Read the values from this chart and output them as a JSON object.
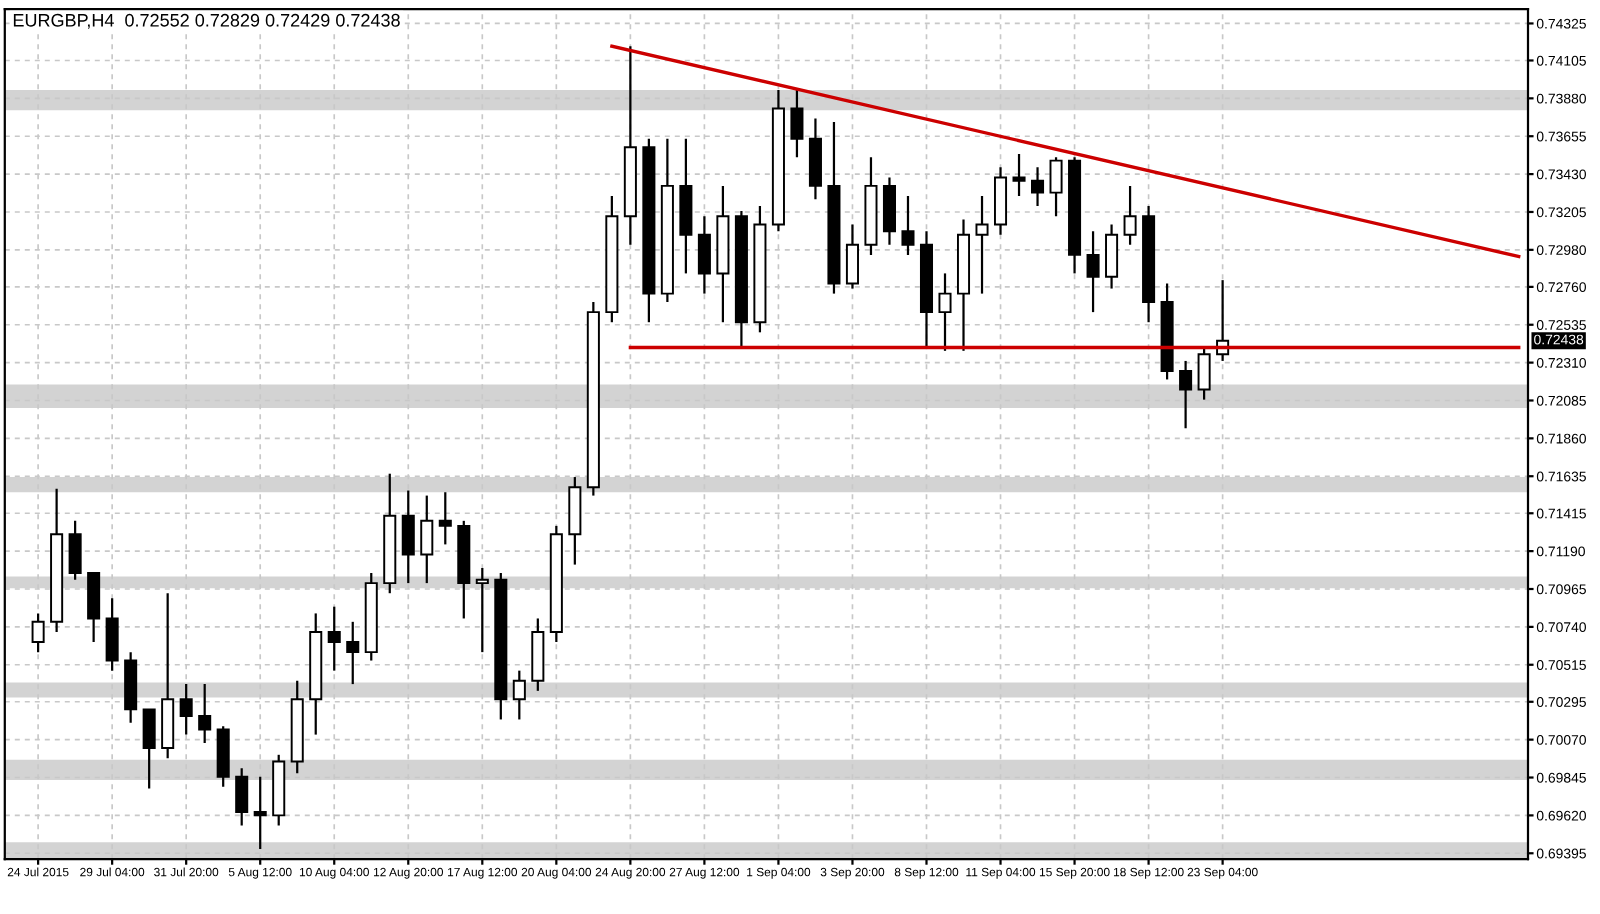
{
  "chart_data": {
    "type": "candlestick",
    "title": "EURGBP,H4  0.72552 0.72829 0.72429 0.72438",
    "categories": [
      "24 Jul 2015",
      null,
      null,
      null,
      "29 Jul 04:00",
      null,
      null,
      null,
      "31 Jul 20:00",
      null,
      null,
      null,
      "5 Aug 12:00",
      null,
      null,
      null,
      "10 Aug 04:00",
      null,
      null,
      null,
      "12 Aug 20:00",
      null,
      null,
      null,
      "17 Aug 12:00",
      null,
      null,
      null,
      "20 Aug 04:00",
      null,
      null,
      null,
      "24 Aug 20:00",
      null,
      null,
      null,
      "27 Aug 12:00",
      null,
      null,
      null,
      "1 Sep 04:00",
      null,
      null,
      null,
      "3 Sep 20:00",
      null,
      null,
      null,
      "8 Sep 12:00",
      null,
      null,
      null,
      "11 Sep 04:00",
      null,
      null,
      null,
      "15 Sep 20:00",
      null,
      null,
      null,
      "18 Sep 12:00",
      null,
      null,
      null,
      "23 Sep 04:00",
      null,
      null,
      null,
      null,
      null,
      null,
      null,
      null,
      null,
      null,
      null,
      null,
      null,
      null,
      null,
      null
    ],
    "ohlc": [
      [
        0.7065,
        0.7082,
        0.7059,
        0.7077
      ],
      [
        0.7077,
        0.7156,
        0.7071,
        0.7129
      ],
      [
        0.7129,
        0.7137,
        0.7102,
        0.7106
      ],
      [
        0.7106,
        0.7106,
        0.7065,
        0.7079
      ],
      [
        0.7079,
        0.7091,
        0.7048,
        0.7054
      ],
      [
        0.7054,
        0.7059,
        0.7017,
        0.7025
      ],
      [
        0.7025,
        0.7025,
        0.6978,
        0.7002
      ],
      [
        0.7002,
        0.7094,
        0.6996,
        0.7031
      ],
      [
        0.7031,
        0.704,
        0.701,
        0.7021
      ],
      [
        0.7021,
        0.704,
        0.7005,
        0.7013
      ],
      [
        0.7013,
        0.7015,
        0.6979,
        0.6985
      ],
      [
        0.6985,
        0.699,
        0.6956,
        0.6964
      ],
      [
        0.6964,
        0.6985,
        0.6942,
        0.6962
      ],
      [
        0.6962,
        0.6998,
        0.6956,
        0.6994
      ],
      [
        0.6994,
        0.7042,
        0.6987,
        0.7031
      ],
      [
        0.7031,
        0.7082,
        0.701,
        0.7071
      ],
      [
        0.7071,
        0.7086,
        0.7048,
        0.7065
      ],
      [
        0.7065,
        0.7077,
        0.704,
        0.7059
      ],
      [
        0.7059,
        0.7106,
        0.7054,
        0.71
      ],
      [
        0.71,
        0.7165,
        0.7094,
        0.714
      ],
      [
        0.714,
        0.7155,
        0.71,
        0.7117
      ],
      [
        0.7117,
        0.7152,
        0.71,
        0.7137
      ],
      [
        0.7137,
        0.7154,
        0.7123,
        0.7134
      ],
      [
        0.7134,
        0.7137,
        0.7079,
        0.71
      ],
      [
        0.71,
        0.7109,
        0.7059,
        0.7102
      ],
      [
        0.7102,
        0.7106,
        0.7019,
        0.7031
      ],
      [
        0.7031,
        0.7048,
        0.7019,
        0.7042
      ],
      [
        0.7042,
        0.7079,
        0.7036,
        0.7071
      ],
      [
        0.7071,
        0.7134,
        0.7065,
        0.7129
      ],
      [
        0.7129,
        0.7163,
        0.7111,
        0.7157
      ],
      [
        0.7157,
        0.7267,
        0.7152,
        0.7261
      ],
      [
        0.7261,
        0.733,
        0.7255,
        0.7318
      ],
      [
        0.7318,
        0.7419,
        0.7301,
        0.7359
      ],
      [
        0.7359,
        0.7364,
        0.7255,
        0.7272
      ],
      [
        0.7272,
        0.7364,
        0.7267,
        0.7336
      ],
      [
        0.7336,
        0.7364,
        0.7284,
        0.7307
      ],
      [
        0.7307,
        0.7318,
        0.7272,
        0.7284
      ],
      [
        0.7284,
        0.7336,
        0.7255,
        0.7318
      ],
      [
        0.7318,
        0.7321,
        0.724,
        0.7255
      ],
      [
        0.7255,
        0.7324,
        0.7249,
        0.7313
      ],
      [
        0.7313,
        0.7393,
        0.7309,
        0.7382
      ],
      [
        0.7382,
        0.7394,
        0.7353,
        0.7364
      ],
      [
        0.7364,
        0.7376,
        0.7328,
        0.7336
      ],
      [
        0.7336,
        0.7374,
        0.7272,
        0.7278
      ],
      [
        0.7278,
        0.7313,
        0.7275,
        0.7301
      ],
      [
        0.7301,
        0.7353,
        0.7295,
        0.7336
      ],
      [
        0.7336,
        0.7341,
        0.7301,
        0.7309
      ],
      [
        0.7309,
        0.733,
        0.7295,
        0.7301
      ],
      [
        0.7301,
        0.7309,
        0.724,
        0.7261
      ],
      [
        0.7261,
        0.7284,
        0.7238,
        0.7272
      ],
      [
        0.7272,
        0.7316,
        0.7238,
        0.7307
      ],
      [
        0.7307,
        0.733,
        0.7272,
        0.7313
      ],
      [
        0.7313,
        0.7347,
        0.7307,
        0.7341
      ],
      [
        0.7341,
        0.7355,
        0.733,
        0.7339
      ],
      [
        0.7339,
        0.7347,
        0.7324,
        0.7332
      ],
      [
        0.7332,
        0.7353,
        0.7318,
        0.7351
      ],
      [
        0.7351,
        0.7353,
        0.7284,
        0.7295
      ],
      [
        0.7295,
        0.7309,
        0.7261,
        0.7282
      ],
      [
        0.7282,
        0.7313,
        0.7275,
        0.7307
      ],
      [
        0.7307,
        0.7336,
        0.7301,
        0.7318
      ],
      [
        0.7318,
        0.7324,
        0.7255,
        0.7267
      ],
      [
        0.7267,
        0.7278,
        0.7221,
        0.7226
      ],
      [
        0.7226,
        0.7232,
        0.7192,
        0.7215
      ],
      [
        0.7215,
        0.724,
        0.7209,
        0.7236
      ],
      [
        0.7236,
        0.728,
        0.7232,
        0.7244
      ],
      null,
      null,
      null,
      null,
      null,
      null,
      null,
      null,
      null,
      null,
      null,
      null,
      null,
      null,
      null,
      null
    ],
    "color": "#000000",
    "series": [
      {
        "type": "line",
        "color": "#cc0000",
        "values": [
          null,
          null,
          null,
          null,
          null,
          null,
          null,
          null,
          null,
          null,
          null,
          null,
          null,
          null,
          null,
          null,
          null,
          null,
          null,
          null,
          null,
          null,
          null,
          null,
          null,
          null,
          null,
          null,
          null,
          null,
          null,
          0.7419,
          null,
          null,
          null,
          null,
          null,
          null,
          null,
          null,
          null,
          null,
          null,
          null,
          null,
          null,
          null,
          null,
          null,
          null,
          null,
          null,
          null,
          null,
          null,
          null,
          null,
          null,
          null,
          null,
          null,
          null,
          null,
          null,
          null,
          null,
          null,
          null,
          null,
          null,
          null,
          null,
          null,
          null,
          null,
          null,
          null,
          null,
          null,
          null,
          0.7294
        ]
      },
      {
        "type": "line",
        "color": "#cc0000",
        "values": [
          null,
          null,
          null,
          null,
          null,
          null,
          null,
          null,
          null,
          null,
          null,
          null,
          null,
          null,
          null,
          null,
          null,
          null,
          null,
          null,
          null,
          null,
          null,
          null,
          null,
          null,
          null,
          null,
          null,
          null,
          null,
          null,
          0.724,
          null,
          null,
          null,
          null,
          null,
          null,
          null,
          null,
          null,
          null,
          null,
          null,
          null,
          null,
          null,
          null,
          null,
          null,
          null,
          null,
          null,
          null,
          null,
          null,
          null,
          null,
          null,
          null,
          null,
          null,
          null,
          null,
          null,
          null,
          null,
          null,
          null,
          null,
          null,
          null,
          null,
          null,
          null,
          null,
          null,
          null,
          null,
          0.724
        ]
      }
    ],
    "bands": [
      {
        "axis": "y",
        "from": 0.7381,
        "to": 0.7393,
        "color": "#d3d3d3"
      },
      {
        "axis": "y",
        "from": 0.7204,
        "to": 0.7218,
        "color": "#d3d3d3"
      },
      {
        "axis": "y",
        "from": 0.7154,
        "to": 0.7163,
        "color": "#d3d3d3"
      },
      {
        "axis": "y",
        "from": 0.7097,
        "to": 0.7104,
        "color": "#d3d3d3"
      },
      {
        "axis": "y",
        "from": 0.7032,
        "to": 0.7041,
        "color": "#d3d3d3"
      },
      {
        "axis": "y",
        "from": 0.6983,
        "to": 0.6995,
        "color": "#d3d3d3"
      },
      {
        "axis": "y",
        "from": 0.6933,
        "to": 0.6946,
        "color": "#d3d3d3"
      }
    ],
    "annotations": [
      "0.72438"
    ],
    "ylim": [
      0.6936,
      0.7441
    ],
    "yticks": [
      {
        "value": 0.69395,
        "label": "0.69395"
      },
      {
        "value": 0.6962,
        "label": "0.69620"
      },
      {
        "value": 0.69845,
        "label": "0.69845"
      },
      {
        "value": 0.7007,
        "label": "0.70070"
      },
      {
        "value": 0.70295,
        "label": "0.70295"
      },
      {
        "value": 0.70515,
        "label": "0.70515"
      },
      {
        "value": 0.7074,
        "label": "0.70740"
      },
      {
        "value": 0.70965,
        "label": "0.70965"
      },
      {
        "value": 0.7119,
        "label": "0.71190"
      },
      {
        "value": 0.71415,
        "label": "0.71415"
      },
      {
        "value": 0.71635,
        "label": "0.71635"
      },
      {
        "value": 0.7186,
        "label": "0.71860"
      },
      {
        "value": 0.72085,
        "label": "0.72085"
      },
      {
        "value": 0.7231,
        "label": "0.72310"
      },
      {
        "value": 0.72535,
        "label": "0.72535"
      },
      {
        "value": 0.7276,
        "label": "0.72760"
      },
      {
        "value": 0.7298,
        "label": "0.72980"
      },
      {
        "value": 0.73205,
        "label": "0.73205"
      },
      {
        "value": 0.7343,
        "label": "0.73430"
      },
      {
        "value": 0.73655,
        "label": "0.73655"
      },
      {
        "value": 0.7388,
        "label": "0.73880"
      },
      {
        "value": 0.74105,
        "label": "0.74105"
      },
      {
        "value": 0.74325,
        "label": "0.74325"
      }
    ],
    "grid": true
  }
}
